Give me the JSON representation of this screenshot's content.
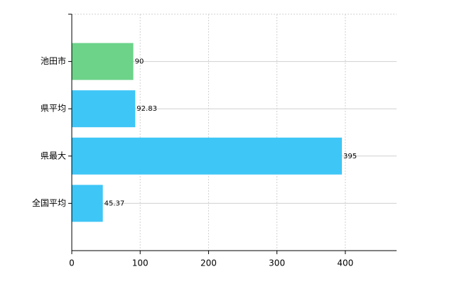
{
  "chart_data": {
    "type": "barh",
    "categories": [
      "池田市",
      "県平均",
      "県最大",
      "全国平均"
    ],
    "values": [
      90,
      92.83,
      395,
      45.37
    ],
    "colors": [
      "#6cd389",
      "#3ec6f6",
      "#3ec6f6",
      "#3ec6f6"
    ],
    "xlim": [
      0,
      475
    ],
    "xticks": [
      0,
      100,
      200,
      300,
      400
    ],
    "grid": true
  }
}
